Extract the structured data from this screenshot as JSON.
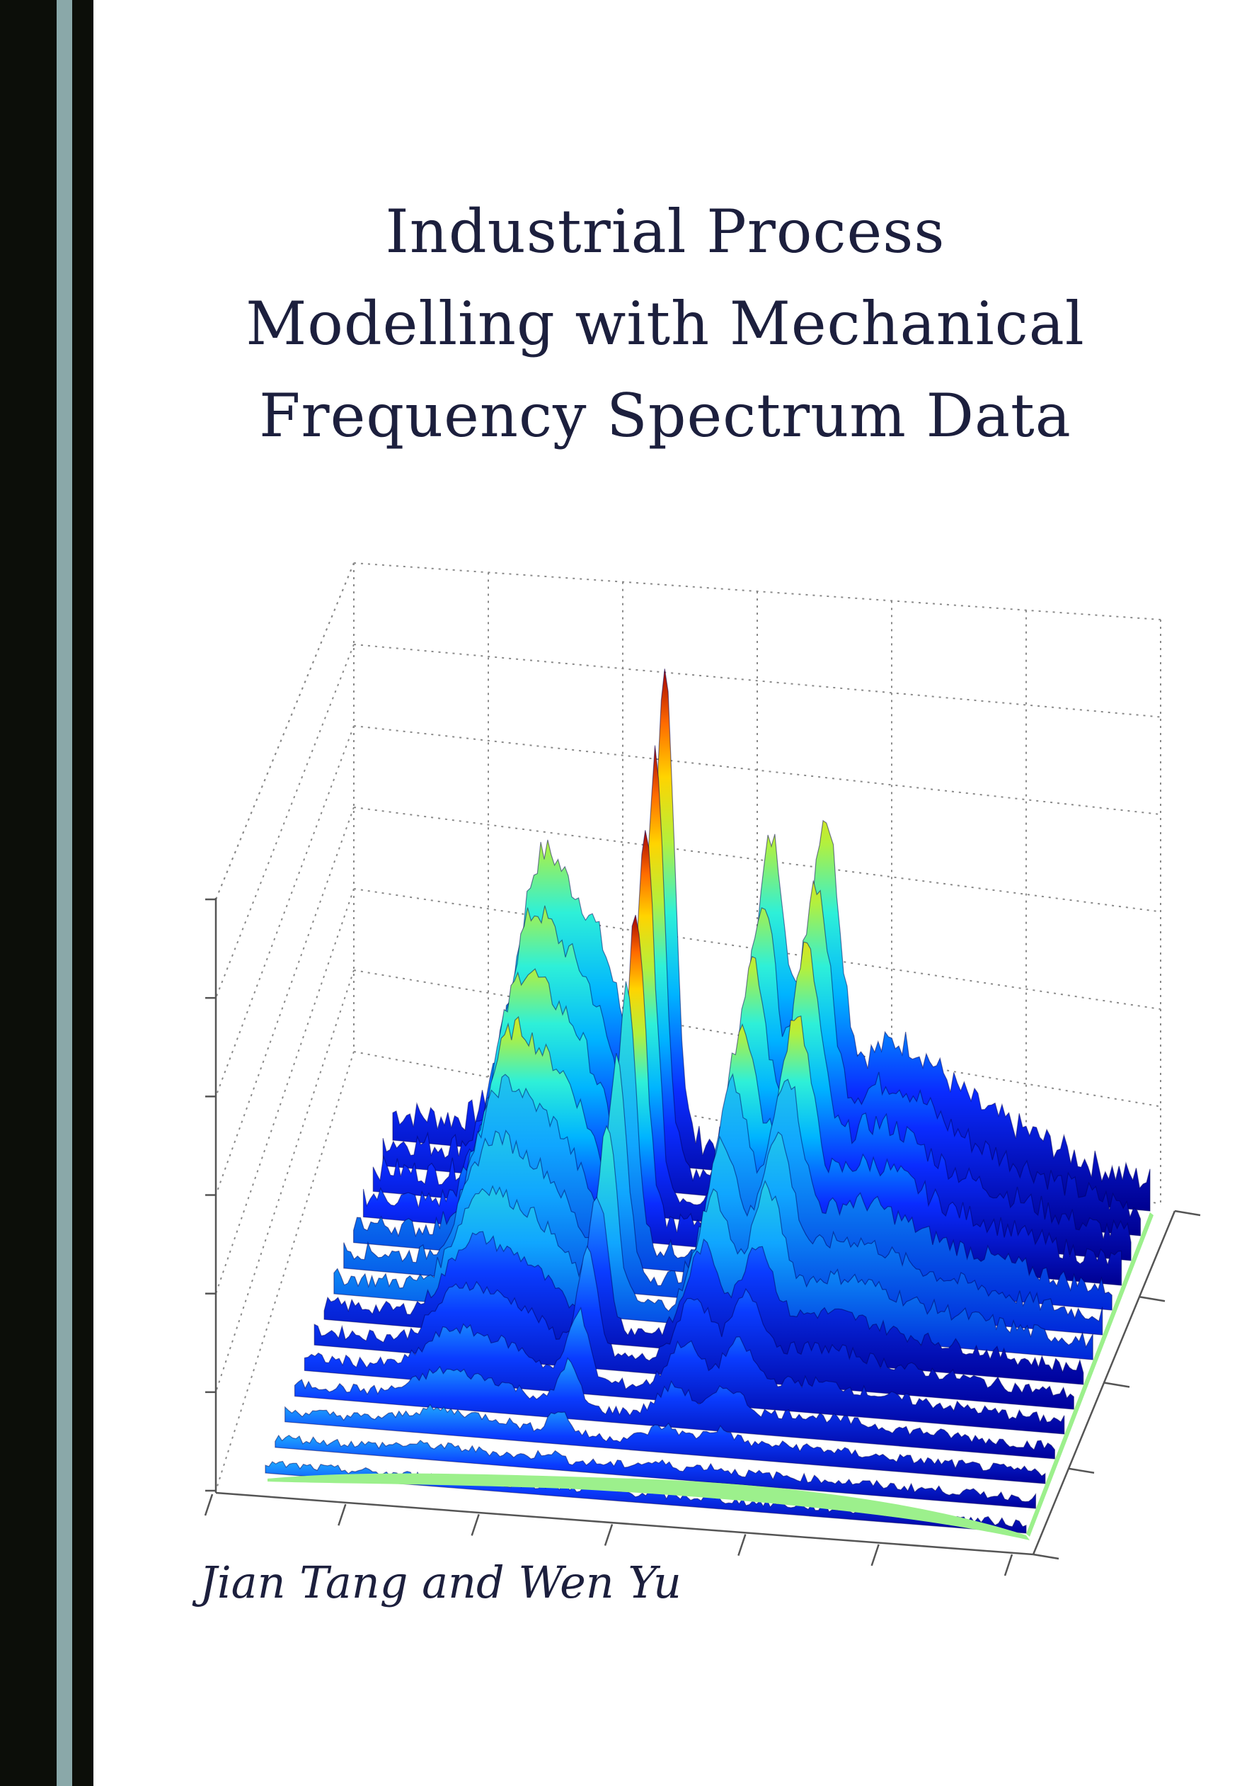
{
  "title_lines": [
    "Industrial Process",
    "Modelling with Mechanical",
    "Frequency Spectrum Data"
  ],
  "authors": "Jian Tang and Wen Yu",
  "colors": {
    "spine": "#0c0e09",
    "spine_stripe": "#8aa8a9",
    "text": "#1c1f3d",
    "surface_base": "#00008f",
    "surface_peak": "#8b0000",
    "floor": "#9cf08c"
  },
  "illustration": {
    "type": "3d-surface",
    "colormap": "jet",
    "grid": "dotted"
  }
}
